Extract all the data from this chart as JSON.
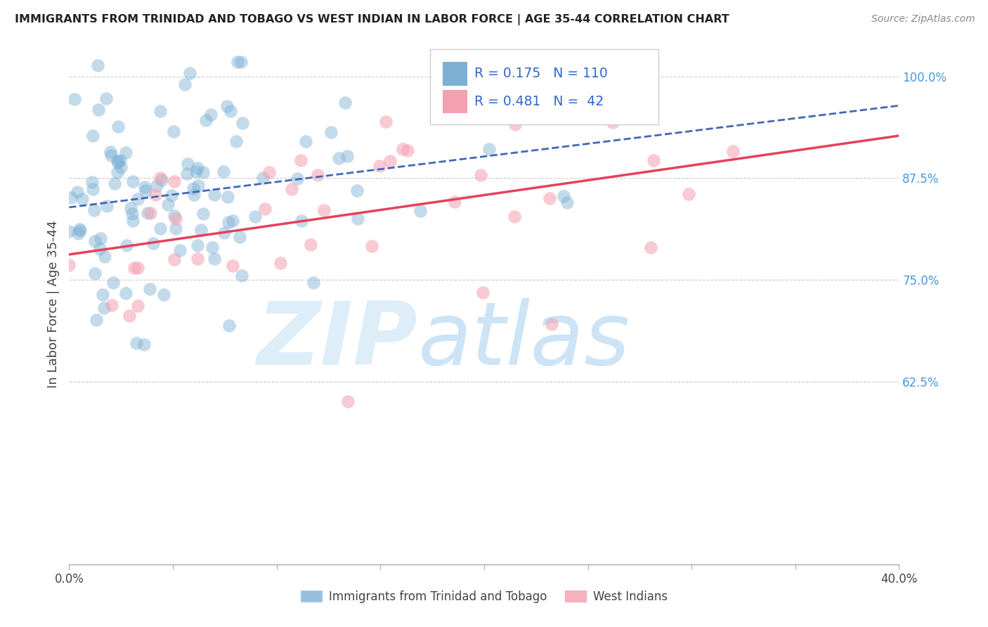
{
  "title": "IMMIGRANTS FROM TRINIDAD AND TOBAGO VS WEST INDIAN IN LABOR FORCE | AGE 35-44 CORRELATION CHART",
  "source": "Source: ZipAtlas.com",
  "xlabel_blue": "Immigrants from Trinidad and Tobago",
  "xlabel_pink": "West Indians",
  "ylabel": "In Labor Force | Age 35-44",
  "R_blue": 0.175,
  "N_blue": 110,
  "R_pink": 0.481,
  "N_pink": 42,
  "blue_color": "#7bafd4",
  "pink_color": "#f4a0b0",
  "trend_blue_color": "#4169b8",
  "trend_pink_color": "#e8405a",
  "xlim": [
    0.0,
    0.4
  ],
  "ylim": [
    0.4,
    1.04
  ],
  "x_ticks": [
    0.0,
    0.05,
    0.1,
    0.15,
    0.2,
    0.25,
    0.3,
    0.35,
    0.4
  ],
  "y_ticks_right": [
    0.625,
    0.75,
    0.875,
    1.0
  ],
  "y_tick_labels_right": [
    "62.5%",
    "75.0%",
    "87.5%",
    "100.0%"
  ],
  "x_tick_labels_show": [
    "0.0%",
    "",
    "",
    "",
    "",
    "",
    "",
    "",
    "40.0%"
  ],
  "watermark_zip": "ZIP",
  "watermark_atlas": "atlas",
  "watermark_color": "#ddeef8"
}
